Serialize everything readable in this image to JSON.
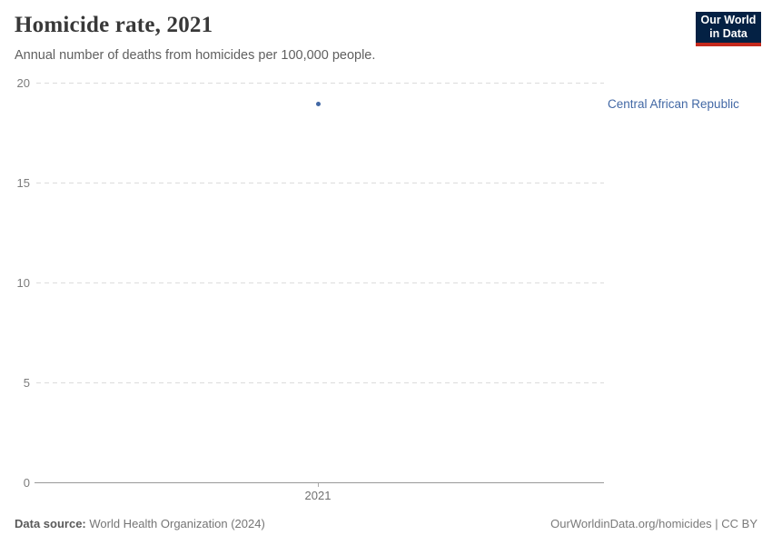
{
  "header": {
    "title": "Homicide rate, 2021",
    "subtitle": "Annual number of deaths from homicides per 100,000 people."
  },
  "logo": {
    "line1": "Our World",
    "line2": "in Data",
    "bg_color": "#042144",
    "accent_color": "#c5291d"
  },
  "chart_data": {
    "type": "scatter",
    "title": "Homicide rate, 2021",
    "xlabel": "",
    "ylabel": "",
    "ylim": [
      0,
      20
    ],
    "yticks": [
      0,
      5,
      10,
      15,
      20
    ],
    "ytick_labels_top_to_bottom": [
      "20",
      "15",
      "10",
      "5",
      "0"
    ],
    "xtick_labels": [
      "2021"
    ],
    "grid": "horizontal dashed",
    "legend_position": "right-of-point",
    "series": [
      {
        "name": "Central African Republic",
        "color": "#4268a5",
        "points": [
          {
            "x": 2021,
            "y": 19
          }
        ]
      }
    ]
  },
  "axis": {
    "ytick_20": "20",
    "ytick_15": "15",
    "ytick_10": "10",
    "ytick_5": "5",
    "ytick_0": "0",
    "xtick_2021": "2021"
  },
  "entity": {
    "label": "Central African Republic",
    "color": "#4268a5"
  },
  "footer": {
    "data_source_label": "Data source:",
    "data_source_value": " World Health Organization (2024)",
    "attribution": "OurWorldinData.org/homicides | CC BY"
  }
}
